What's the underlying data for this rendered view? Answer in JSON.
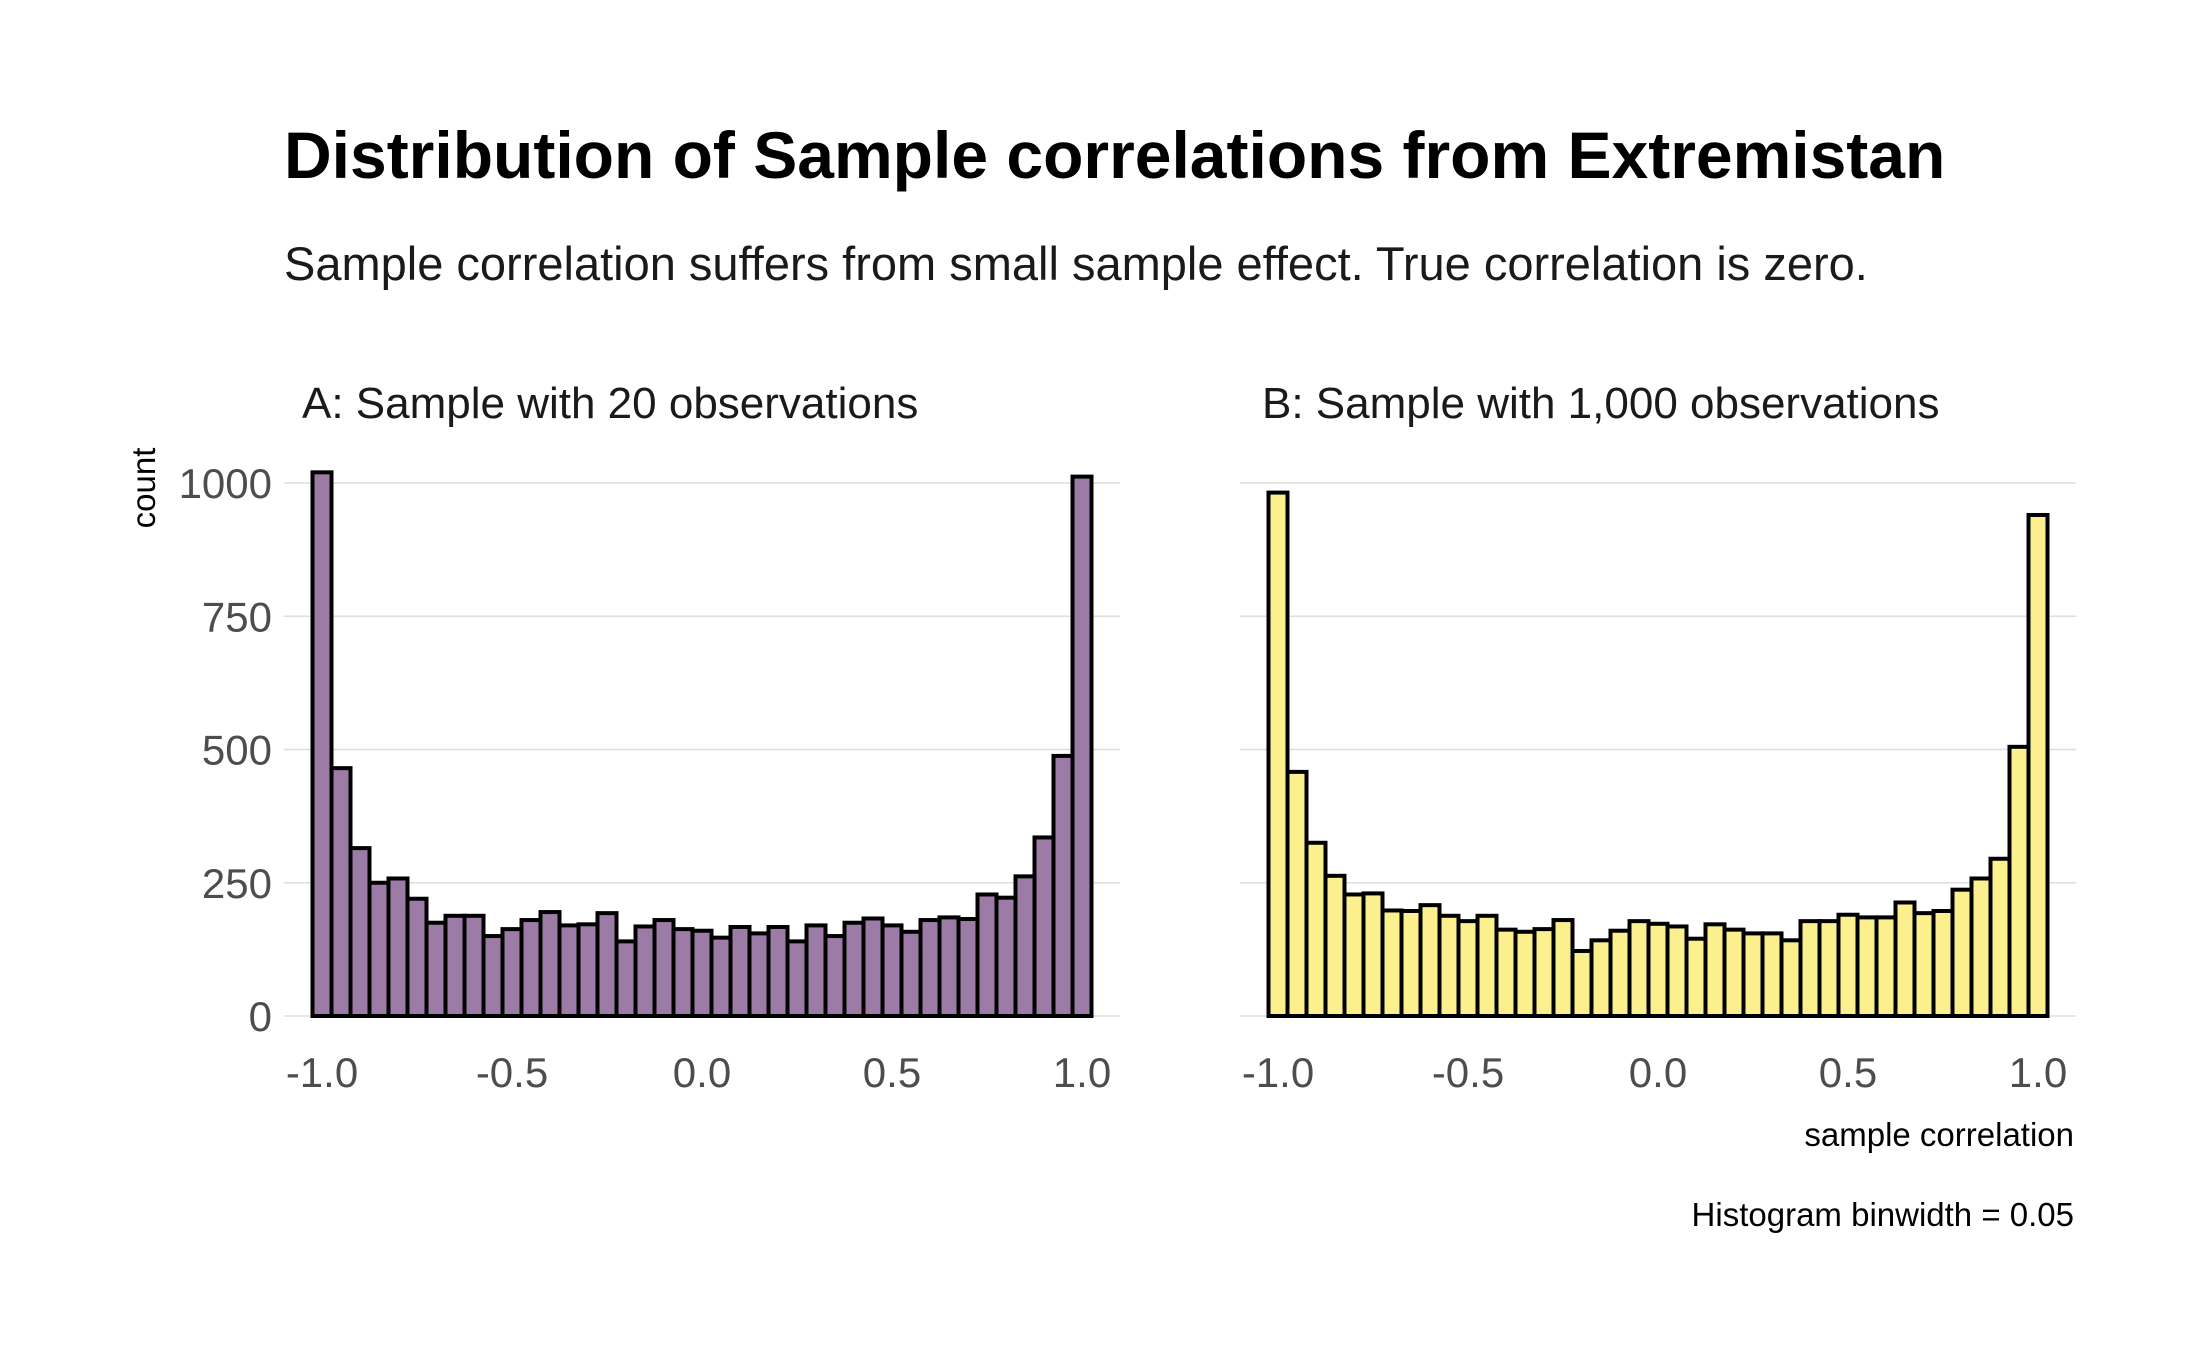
{
  "title": "Distribution of Sample correlations from Extremistan",
  "subtitle": "Sample correlation suffers from small sample effect. True correlation is zero.",
  "ylabel": "count",
  "xlabel": "sample correlation",
  "caption": "Histogram binwidth = 0.05",
  "colors": {
    "panel_a_fill": "#9d7ba7",
    "panel_b_fill": "#fcef8d",
    "bar_outline": "#000000",
    "grid": "#dedede"
  },
  "chart_data": [
    {
      "type": "bar",
      "title": "A: Sample with 20 observations",
      "xlabel": "",
      "ylabel": "count",
      "binwidth": 0.05,
      "x": [
        -1.0,
        -0.95,
        -0.9,
        -0.85,
        -0.8,
        -0.75,
        -0.7,
        -0.65,
        -0.6,
        -0.55,
        -0.5,
        -0.45,
        -0.4,
        -0.35,
        -0.3,
        -0.25,
        -0.2,
        -0.15,
        -0.1,
        -0.05,
        0.0,
        0.05,
        0.1,
        0.15,
        0.2,
        0.25,
        0.3,
        0.35,
        0.4,
        0.45,
        0.5,
        0.55,
        0.6,
        0.65,
        0.7,
        0.75,
        0.8,
        0.85,
        0.9,
        0.95,
        1.0
      ],
      "values": [
        1020,
        465,
        315,
        250,
        258,
        220,
        175,
        188,
        188,
        150,
        163,
        180,
        195,
        170,
        172,
        193,
        140,
        168,
        180,
        163,
        160,
        147,
        167,
        155,
        167,
        140,
        170,
        150,
        175,
        183,
        170,
        158,
        180,
        185,
        182,
        228,
        222,
        262,
        335,
        488,
        1012
      ],
      "xticks": [
        "-1.0",
        "-0.5",
        "0.0",
        "0.5",
        "1.0"
      ],
      "xtick_values": [
        -1.0,
        -0.5,
        0.0,
        0.5,
        1.0
      ],
      "yticks": [
        "0",
        "250",
        "500",
        "750",
        "1000"
      ],
      "ytick_values": [
        0,
        250,
        500,
        750,
        1000
      ],
      "xlim": [
        -1.1,
        1.1
      ],
      "ylim": [
        0,
        1000
      ],
      "grid": true
    },
    {
      "type": "bar",
      "title": "B: Sample with 1,000 observations",
      "xlabel": "sample correlation",
      "ylabel": "",
      "binwidth": 0.05,
      "x": [
        -1.0,
        -0.95,
        -0.9,
        -0.85,
        -0.8,
        -0.75,
        -0.7,
        -0.65,
        -0.6,
        -0.55,
        -0.5,
        -0.45,
        -0.4,
        -0.35,
        -0.3,
        -0.25,
        -0.2,
        -0.15,
        -0.1,
        -0.05,
        0.0,
        0.05,
        0.1,
        0.15,
        0.2,
        0.25,
        0.3,
        0.35,
        0.4,
        0.45,
        0.5,
        0.55,
        0.6,
        0.65,
        0.7,
        0.75,
        0.8,
        0.85,
        0.9,
        0.95,
        1.0
      ],
      "values": [
        982,
        458,
        325,
        263,
        228,
        230,
        198,
        197,
        208,
        188,
        178,
        188,
        162,
        158,
        163,
        180,
        122,
        142,
        160,
        178,
        173,
        168,
        145,
        172,
        162,
        155,
        155,
        142,
        178,
        178,
        190,
        185,
        185,
        213,
        193,
        197,
        237,
        258,
        295,
        505,
        940
      ],
      "xticks": [
        "-1.0",
        "-0.5",
        "0.0",
        "0.5",
        "1.0"
      ],
      "xtick_values": [
        -1.0,
        -0.5,
        0.0,
        0.5,
        1.0
      ],
      "yticks": [
        "0",
        "250",
        "500",
        "750",
        "1000"
      ],
      "ytick_values": [
        0,
        250,
        500,
        750,
        1000
      ],
      "xlim": [
        -1.1,
        1.1
      ],
      "ylim": [
        0,
        1000
      ],
      "grid": true
    }
  ]
}
